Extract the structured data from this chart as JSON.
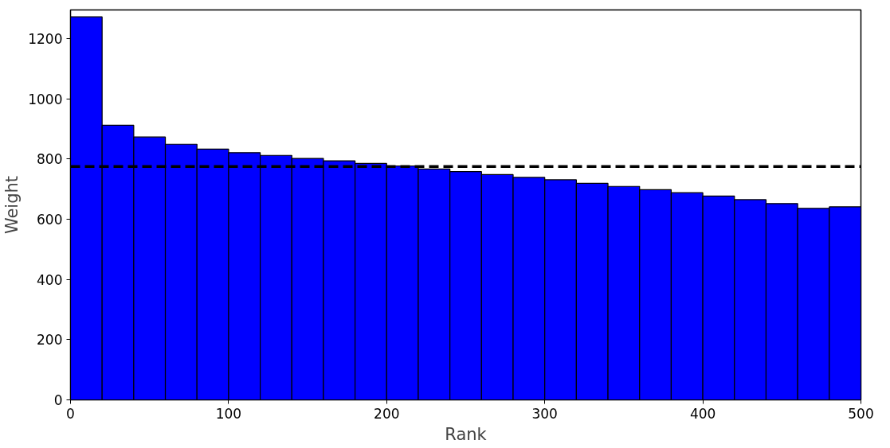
{
  "chart_data": {
    "type": "histogram",
    "xlabel": "Rank",
    "ylabel": "Weight",
    "bins": [
      0,
      20,
      40,
      60,
      80,
      100,
      120,
      140,
      160,
      180,
      200,
      220,
      240,
      260,
      280,
      300,
      320,
      340,
      360,
      380,
      400,
      420,
      440,
      460,
      480,
      500
    ],
    "values": [
      1272,
      912,
      873,
      849,
      833,
      821,
      812,
      802,
      794,
      785,
      777,
      767,
      758,
      748,
      739,
      731,
      719,
      709,
      698,
      688,
      677,
      665,
      652,
      636,
      641
    ],
    "color": "#0000ff",
    "xlim": [
      0,
      500
    ],
    "ylim": [
      0,
      1295
    ],
    "xticks": [
      0,
      100,
      200,
      300,
      400,
      500
    ],
    "yticks": [
      0,
      200,
      400,
      600,
      800,
      1000,
      1200
    ],
    "ref_lines": [
      {
        "axis": "y",
        "value": 775,
        "color": "#000000",
        "line_style": "dashed"
      }
    ],
    "grid": false
  }
}
